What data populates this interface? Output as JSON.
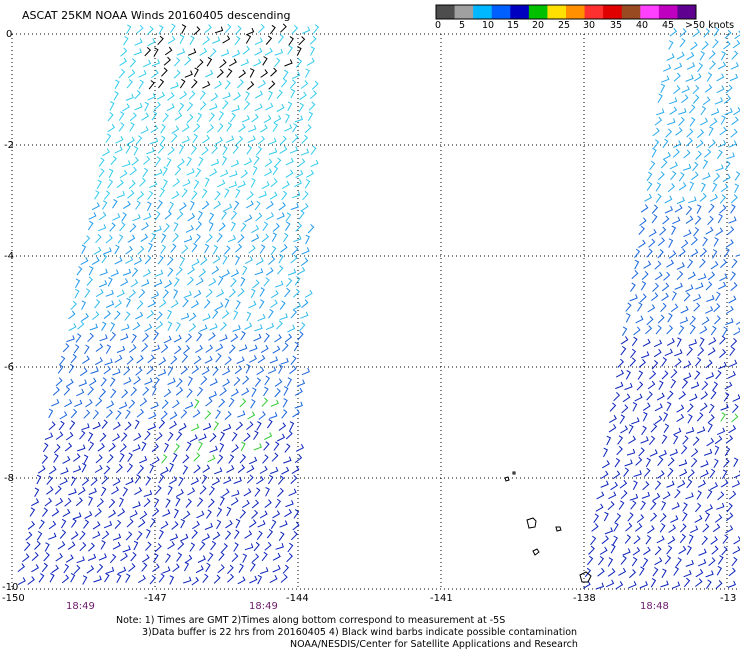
{
  "title": "ASCAT 25KM NOAA Winds 20160405 descending",
  "legend": {
    "ticks": [
      "0",
      "5",
      "10",
      "15",
      "20",
      "25",
      "30",
      "35",
      "40",
      "45",
      ">50 knots"
    ],
    "colors": [
      "#4d4d4d",
      "#a0a0a0",
      "#00b8ff",
      "#0060ff",
      "#0000c0",
      "#00c000",
      "#ffe000",
      "#ff9000",
      "#ff3030",
      "#e00000",
      "#9a4a20",
      "#ff40ff",
      "#c000c0",
      "#600090"
    ]
  },
  "axes": {
    "lat_labels": [
      "0",
      "-2",
      "-4",
      "-6",
      "-8",
      "-10"
    ],
    "lon_labels": [
      "-150",
      "-147",
      "-144",
      "-141",
      "-138",
      "-13"
    ]
  },
  "times": [
    "18:49",
    "18:49",
    "18:48"
  ],
  "notes": {
    "line1": "Note: 1) Times are GMT 2)Times along bottom correspond to measurement at -5S",
    "line2": "3)Data buffer is 22 hrs from 20160405 4) Black wind barbs indicate possible contamination",
    "line3": "NOAA/NESDIS/Center for Satellite Applications and Research"
  }
}
